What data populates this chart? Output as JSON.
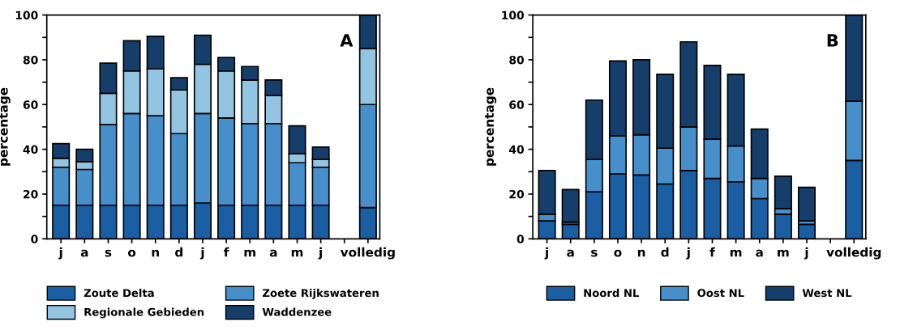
{
  "chart_data": [
    {
      "type": "bar",
      "stacked": true,
      "ylabel": "percentage",
      "annotations": [
        "A"
      ],
      "legend": "bottom",
      "grid": false,
      "categories": [
        "j",
        "a",
        "s",
        "o",
        "n",
        "d",
        "j",
        "f",
        "m",
        "a",
        "m",
        "j",
        null,
        "volledig"
      ],
      "ylim": [
        0,
        100
      ],
      "yticks": [
        0,
        {
          "value": 10,
          "label": null
        },
        20,
        {
          "value": 30,
          "label": null
        },
        40,
        {
          "value": 50,
          "label": null
        },
        60,
        {
          "value": 70,
          "label": null
        },
        80,
        {
          "value": 90,
          "label": null
        },
        100
      ],
      "series": [
        {
          "name": "Zoute Delta",
          "color": "#1a5ea3",
          "values": [
            15,
            15,
            15,
            15,
            15,
            15,
            16,
            15,
            15,
            15,
            15,
            15,
            null,
            14
          ]
        },
        {
          "name": "Zoete Rijkswateren",
          "color": "#478fca",
          "values": [
            17,
            16,
            36,
            41,
            40,
            32,
            40,
            39,
            36.5,
            36.5,
            19,
            17,
            null,
            46
          ]
        },
        {
          "name": "Regionale Gebieden",
          "color": "#93c5e2",
          "values": [
            4,
            3.5,
            14,
            19,
            21,
            19.5,
            22,
            21,
            19.5,
            12.5,
            4,
            3.5,
            null,
            25
          ]
        },
        {
          "name": "Waddenzee",
          "color": "#163e6a",
          "values": [
            6.5,
            5.5,
            13.5,
            13.5,
            14.5,
            5.5,
            13,
            6,
            6,
            7,
            12.5,
            5.5,
            null,
            15
          ]
        }
      ]
    },
    {
      "type": "bar",
      "stacked": true,
      "ylabel": "percentage",
      "annotations": [
        "B"
      ],
      "legend": "bottom",
      "grid": false,
      "categories": [
        "j",
        "a",
        "s",
        "o",
        "n",
        "d",
        "j",
        "f",
        "m",
        "a",
        "m",
        "j",
        null,
        "volledig"
      ],
      "ylim": [
        0,
        100
      ],
      "yticks": [
        0,
        {
          "value": 10,
          "label": null
        },
        20,
        {
          "value": 30,
          "label": null
        },
        40,
        {
          "value": 50,
          "label": null
        },
        60,
        {
          "value": 70,
          "label": null
        },
        80,
        {
          "value": 90,
          "label": null
        },
        100
      ],
      "series": [
        {
          "name": "Noord NL",
          "color": "#1a5ea3",
          "values": [
            8,
            6.5,
            21,
            29,
            28.5,
            24.5,
            30.5,
            27,
            25.5,
            18,
            11,
            6.5,
            null,
            35
          ]
        },
        {
          "name": "Oost NL",
          "color": "#478fca",
          "values": [
            3,
            1,
            14.5,
            17,
            18,
            16,
            19.5,
            17.5,
            16,
            9,
            2.5,
            1.5,
            null,
            26.5
          ]
        },
        {
          "name": "West NL",
          "color": "#163e6a",
          "values": [
            19.5,
            14.5,
            26.5,
            33.5,
            33.5,
            33,
            38,
            33,
            32,
            22,
            14.5,
            15,
            null,
            38.5
          ]
        }
      ]
    }
  ]
}
